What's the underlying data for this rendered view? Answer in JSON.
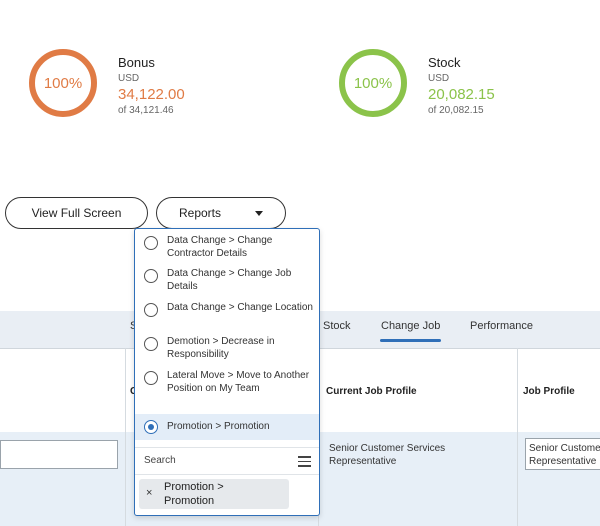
{
  "stats": {
    "bonus": {
      "percent": "100%",
      "title": "Bonus",
      "currency": "USD",
      "value": "34,122.00",
      "of": "of 34,121.46",
      "color": "#e07b45"
    },
    "stock": {
      "percent": "100%",
      "title": "Stock",
      "currency": "USD",
      "value": "20,082.15",
      "of": "of 20,082.15",
      "color": "#8bc34a"
    }
  },
  "buttons": {
    "view_full_screen": "View Full Screen",
    "reports": "Reports"
  },
  "tabs": {
    "partial": "S",
    "stock": "Stock",
    "change_job": "Change Job",
    "performance": "Performance"
  },
  "table": {
    "partial_header": "C",
    "current_job_profile_header": "Current Job Profile",
    "job_profile_header": "Job Profile",
    "current_job_profile_value": "Senior Customer Services Representative",
    "job_profile_input_value": "Senior Custome Representative"
  },
  "dropdown": {
    "options": [
      {
        "label": "Data Change > Change Contractor Details",
        "selected": false
      },
      {
        "label": "Data Change > Change Job Details",
        "selected": false
      },
      {
        "label": "Data Change > Change Location",
        "selected": false
      },
      {
        "label": "Demotion > Decrease in Responsibility",
        "selected": false
      },
      {
        "label": "Lateral Move > Move to Another Position on My Team",
        "selected": false
      },
      {
        "label": "Promotion > Promotion",
        "selected": true
      }
    ],
    "search_label": "Search",
    "chip_label": "Promotion > Promotion",
    "chip_remove": "×"
  },
  "colors": {
    "accent": "#2f6fb8"
  }
}
